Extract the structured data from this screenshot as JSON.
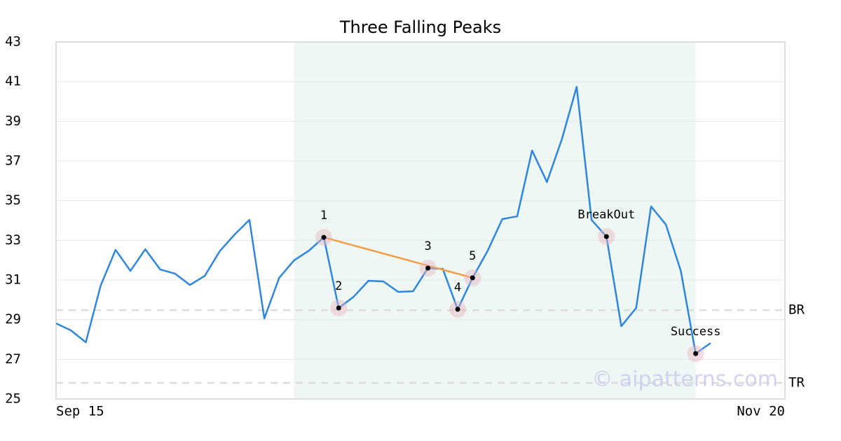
{
  "chart_data": {
    "type": "line",
    "title": "Three Falling Peaks",
    "categories": [
      "Sep 15",
      null,
      null,
      null,
      null,
      null,
      null,
      null,
      null,
      null,
      null,
      null,
      null,
      null,
      null,
      null,
      null,
      null,
      null,
      null,
      null,
      null,
      null,
      null,
      null,
      null,
      null,
      null,
      null,
      null,
      null,
      null,
      null,
      null,
      null,
      null,
      null,
      null,
      null,
      null,
      null,
      null,
      null,
      null,
      null,
      null,
      null,
      null,
      null,
      "Nov 20"
    ],
    "series": [
      {
        "color": "#2e86de",
        "values": [
          28.81,
          28.46,
          27.86,
          30.72,
          32.52,
          31.46,
          32.55,
          31.53,
          31.32,
          30.75,
          31.21,
          32.45,
          33.29,
          34.03,
          29.06,
          31.11,
          31.99,
          32.48,
          33.15,
          29.59,
          30.15,
          30.96,
          30.93,
          30.4,
          30.43,
          31.6,
          31.56,
          29.52,
          31.11,
          32.45,
          34.07,
          34.21,
          37.53,
          35.94,
          38.09,
          40.74,
          34.03,
          33.19,
          28.67,
          29.59,
          34.71,
          33.79,
          31.46,
          27.29,
          27.82,
          null,
          null,
          null,
          null,
          null
        ]
      }
    ],
    "ylim": [
      25,
      43
    ],
    "yticks": [
      25,
      27,
      29,
      31,
      33,
      35,
      37,
      39,
      41,
      43
    ],
    "grid": true,
    "shaded_range": {
      "start": 16,
      "end": 43,
      "color": "#eef7f3"
    },
    "levels": [
      {
        "label": "BR",
        "value": 29.48
      },
      {
        "label": "TR",
        "value": 25.81
      }
    ],
    "annotations": [
      {
        "label": "1",
        "index": 18,
        "value": 33.15
      },
      {
        "label": "2",
        "index": 19,
        "value": 29.59
      },
      {
        "label": "3",
        "index": 25,
        "value": 31.6
      },
      {
        "label": "4",
        "index": 27,
        "value": 29.52
      },
      {
        "label": "5",
        "index": 28,
        "value": 31.11
      },
      {
        "label": "BreakOut",
        "index": 37,
        "value": 33.19
      },
      {
        "label": "Success",
        "index": 43,
        "value": 27.29
      }
    ],
    "trend_line": {
      "from": 0,
      "to": 4,
      "color": "#f39c45"
    },
    "watermark": "© aipatterns.com"
  }
}
